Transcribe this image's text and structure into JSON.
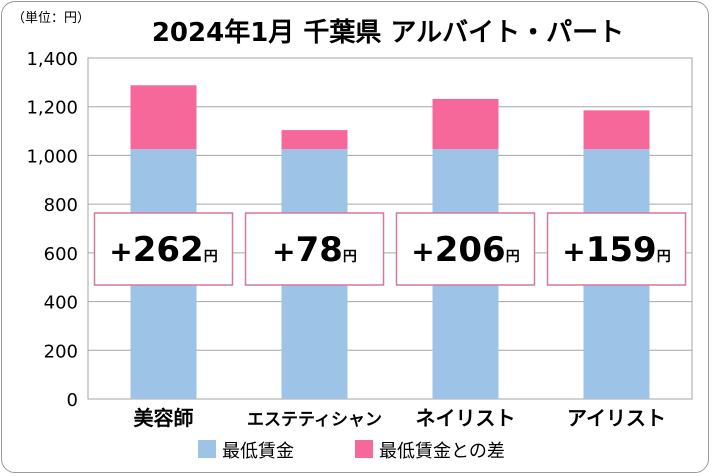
{
  "unit_label": "（単位：円）",
  "chart_data": {
    "type": "bar",
    "stacked": true,
    "title": "2024年1月 千葉県 アルバイト・パート",
    "categories": [
      "美容師",
      "エステティシャン",
      "ネイリスト",
      "アイリスト"
    ],
    "series": [
      {
        "name": "最低賃金",
        "values": [
          1026,
          1026,
          1026,
          1026
        ],
        "color": "#9dc3e6"
      },
      {
        "name": "最低賃金との差",
        "values": [
          262,
          78,
          206,
          159
        ],
        "color": "#f7689a"
      }
    ],
    "callouts": [
      {
        "sign": "+",
        "number": "262",
        "unit": "円"
      },
      {
        "sign": "+",
        "number": "78",
        "unit": "円"
      },
      {
        "sign": "+",
        "number": "206",
        "unit": "円"
      },
      {
        "sign": "+",
        "number": "159",
        "unit": "円"
      }
    ],
    "ylim": [
      0,
      1400
    ],
    "yticks": [
      0,
      200,
      400,
      600,
      800,
      1000,
      1200,
      1400
    ],
    "ytick_labels": [
      "0",
      "200",
      "400",
      "600",
      "800",
      "1,000",
      "1,200",
      "1,400"
    ],
    "grid": true,
    "legend_position": "bottom"
  }
}
